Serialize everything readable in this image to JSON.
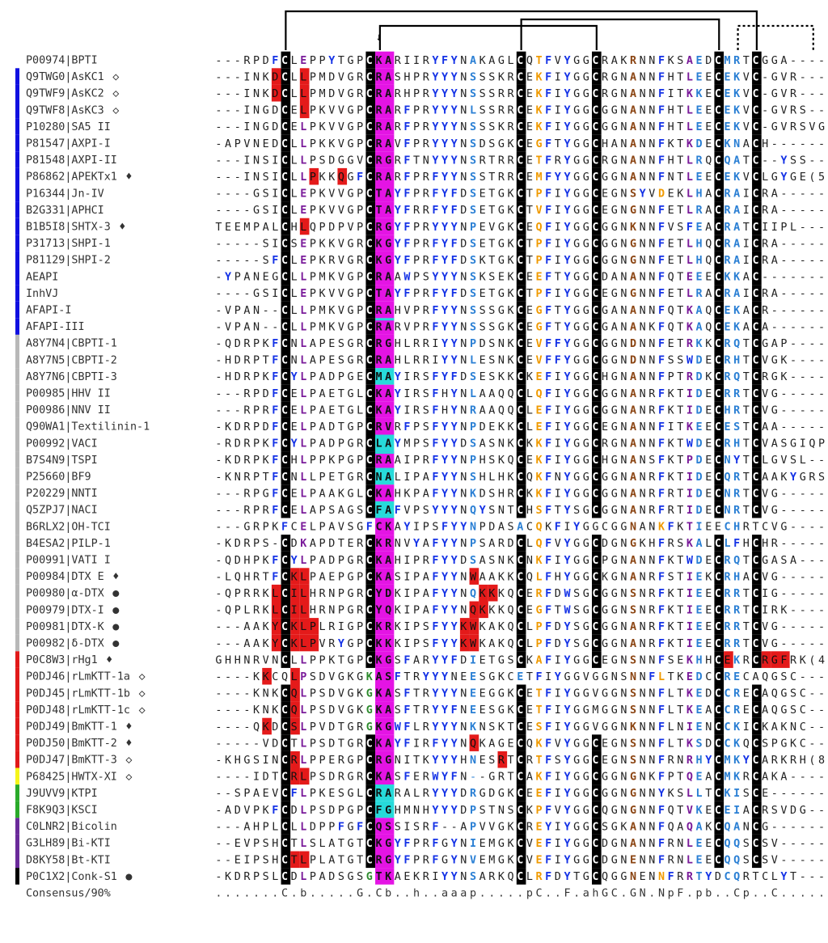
{
  "alignment": {
    "rows": [
      {
        "id": "P00974|BPTI",
        "seq": "---RPDFCLEPPYTGPCKARIIRYFYNAKAGLCQTFVYGGCRAKRNNFKSAEDCMRTCGGA-----",
        "group": "none",
        "marker": ""
      },
      {
        "id": "Q9TWG0|AsKC1",
        "seq": "---INKDCLLPMDVGRCRASHPRYYYNSSSKRCEKFIYGGCRGNANNFHTLEECEKVC-GVR----",
        "group": "blue",
        "marker": "◇"
      },
      {
        "id": "Q9TWF9|AsKC2",
        "seq": "---INKDCLLPMDVGRCRARHPRYYYNSSSRRCEKFIYGGCRGNANNFITKKECEKVC-GVR----",
        "group": "blue",
        "marker": "◇"
      },
      {
        "id": "Q9TWF8|AsKC3",
        "seq": "---INGDCELPKVVGPCRARFPRYYYNLSSRRCEKFIYGGCGGNANNFHTLEECEKVC-GVRS---",
        "group": "blue",
        "marker": "◇"
      },
      {
        "id": "P10280|SA5 II",
        "seq": "---INGDCELPKVVGPCRARFPRYYYNSSSKRCEKFIYGGCGGNANNFHTLEECEKVC-GVRSVGR",
        "group": "blue",
        "marker": ""
      },
      {
        "id": "P81547|AXPI-I",
        "seq": "-APVNEDCLLPKKVGPCRAVFPRYYYNSDSGKCEGFTYGGCHANANNFKTKDECKNACH-------",
        "group": "blue",
        "marker": ""
      },
      {
        "id": "P81548|AXPI-II",
        "seq": "---INSICLLPSDGGVCRGRFTNYYYNSRTRRCETFRYGGCRGNANNFHTLRQCQATC--YSS---",
        "group": "blue",
        "marker": ""
      },
      {
        "id": "P86862|APEKTx1",
        "seq": "---INSICLLPKKQGFCRARFPRFYYNSSTRRCEMFYYGGCGGNANNFNTLEECEKVCLGYGE(5)",
        "group": "blue",
        "marker": "♦"
      },
      {
        "id": "P16344|Jn-IV",
        "seq": "----GSICLEPKVVGPCTAYFPRFYFDSETGKCTPFIYGGCEGNSYVDEKLHACRAICRA------",
        "group": "blue",
        "marker": ""
      },
      {
        "id": "B2G331|APHCI",
        "seq": "----GSICLEPKVVGPCTAYFRRFYFDSETGKCTVFIYGGCEGNGNNFETLRACRAICRA------",
        "group": "blue",
        "marker": ""
      },
      {
        "id": "B1B5I8|SHTX-3",
        "seq": "TEEMPALCHLQPDPVPCRGYFPRYYYNPEVGKCEQFIYGGCGGNKNNFVSFEACRATCIIPL----",
        "group": "blue",
        "marker": "♦"
      },
      {
        "id": "P31713|SHPI-1",
        "seq": "-----SICSEPKKVGRCKGYFPRFYFDSETGKCTPFIYGGCGGNGNNFETLHQCRAICRA------",
        "group": "blue",
        "marker": ""
      },
      {
        "id": "P81129|SHPI-2",
        "seq": "-----SFCLEPKRVGRCKGYFPRFYFDSKTGKCTPFIYGGCGGNGNNFETLHQCRAICRA------",
        "group": "blue",
        "marker": ""
      },
      {
        "id": "AEAPI",
        "seq": "-YPANEGCLLPMKVGPCRAAWPSYYYNSKSEKCEEFTYGGCDANANNFQTEEECKKAC--------",
        "group": "blue",
        "marker": ""
      },
      {
        "id": "InhVJ",
        "seq": "----GSICLEPKVVGPCTAYFPRFYFDSETGKCTPFIYGGCEGNGNNFETLRACRAICRA------",
        "group": "blue",
        "marker": ""
      },
      {
        "id": "AFAPI-I",
        "seq": "-VPAN--CLLPMKVGPCRAHVPRFYYNSSSGKCEGFTYGGCGANANNFQTKAQCEKACR-------",
        "group": "blue",
        "marker": ""
      },
      {
        "id": "AFAPI-III",
        "seq": "-VPAN--CLLPMKVGPCRARVPRFYYNSSSGKCEGFTYGGCGANANKFQTKAQCEKACA-------",
        "group": "blue",
        "marker": ""
      },
      {
        "id": "A8Y7N4|CBPTI-1",
        "seq": "-QDRPKFCNLAPESGRCRGHLRRIYYNPDSNKCEVFFYGGCGGNDNNFETRKKCRQTCGAP-----",
        "group": "gray",
        "marker": ""
      },
      {
        "id": "A8Y7N5|CBPTI-2",
        "seq": "-HDRPTFCNLAPESGRCRAHLRRIYYNLESNKCEVFFYGGCGGNDNNFSSWDECRHTCVGK-----",
        "group": "gray",
        "marker": ""
      },
      {
        "id": "A8Y7N6|CBPTI-3",
        "seq": "-HDRPKFCYLPADPGECMAYIRSFYFDSESKKCKEFIYGGCHGNANNFPTRDKCRQTCRGK-----",
        "group": "gray",
        "marker": ""
      },
      {
        "id": "P00985|HHV II",
        "seq": "---RPDFCELPAETGLCKAYIRSFHYNLAAQQCLQFIYGGCGGNANRFKTIDECRRTCVG------",
        "group": "gray",
        "marker": ""
      },
      {
        "id": "P00986|NNV II",
        "seq": "---RPRFCELPAETGLCKAYIRSFHYNRAAQQCLEFIYGGCGGNANRFKTIDECHRTCVG------",
        "group": "gray",
        "marker": ""
      },
      {
        "id": "Q90WA1|Textilinin-1",
        "seq": "-KDRPDFCELPADTGPCRVRFPSFYYNPDEKKCLEFIYGGCEGNANNFITKEECESTCAA------",
        "group": "gray",
        "marker": ""
      },
      {
        "id": "P00992|VACI",
        "seq": "-RDRPKFCYLPADPGRCLAYMPSFYYDSASNKCKKFIYGGCRGNANNFKTWDECRHTCVASGIQPR",
        "group": "gray",
        "marker": ""
      },
      {
        "id": "B7S4N9|TSPI",
        "seq": "-KDRPKFCHLPPKPGPCRAAIPRFYYNPHSKQCEKFIYGGCHGNANSFKTPDECNYTCLGVSL---",
        "group": "gray",
        "marker": ""
      },
      {
        "id": "P25660|BF9",
        "seq": "-KNRPTFCNLLPETGRCNALIPAFYYNSHLHKCQKFNYGGCGGNANRFKTIDECQRTCAAKYGRSS",
        "group": "gray",
        "marker": ""
      },
      {
        "id": "P20229|NNTI",
        "seq": "---RPGFCELPAAKGLCKAHKPAFYYNKDSHRCKKFIYGGCGGNANRFRTIDECNRTCVG------",
        "group": "gray",
        "marker": ""
      },
      {
        "id": "Q5ZPJ7|NACI",
        "seq": "---RPRFCELAPSAGSCFAFVPSYYYNQYSNTCHSFTYSGCGGNANRFRTIDECNRTCVG------",
        "group": "gray",
        "marker": ""
      },
      {
        "id": "B6RLX2|OH-TCI",
        "seq": "---GRPKFCELPAVSGFCKAYIPSFYYNPDASACQKFIYGGCGGNANKFKTIEECHRTCVG------",
        "group": "gray",
        "marker": ""
      },
      {
        "id": "B4ESA2|PILP-1",
        "seq": "-KDRPS-CDKAPDTERCKRNVYAFYYNPSARDCLQFVYGGCDGNGKHFRSKALCLFHCHR------",
        "group": "gray",
        "marker": ""
      },
      {
        "id": "P00991|VATI I",
        "seq": "-QDHPKFCYLPADPGRCKAHIPRFYYDSASNKCNKFIYGGCPGNANNFKTWDECRQTCGASA----",
        "group": "gray",
        "marker": ""
      },
      {
        "id": "P00984|DTX E",
        "seq": "-LQHRTFCKLPAEPGPCKASIPAFYYNWAAKKCQLFHYGGCKGNANRFSTIEKCRHACVG------",
        "group": "gray",
        "marker": "♦"
      },
      {
        "id": "P00980|α-DTX",
        "seq": "-QPRRKLCILHRNPGRCYDKIPAFYYNQKKKQCERFDWSGCGGNSNRFKTIEECRRTCIG------",
        "group": "gray",
        "marker": "●"
      },
      {
        "id": "P00979|DTX-I",
        "seq": "-QPLRKLCILHRNPGRCYQKIPAFYYNQKKKQCEGFTWSGCGGNSNRFKTIEECRRTCIRK-----",
        "group": "gray",
        "marker": "●"
      },
      {
        "id": "P00981|DTX-K",
        "seq": "---AAKYCKLPLRIGPCKRKIPSFYYKWKAKQCLPFDYSGCGGNANRFKTIEECRRTCVG------",
        "group": "gray",
        "marker": "●"
      },
      {
        "id": "P00982|δ-DTX",
        "seq": "---AAKYCKLPVRYGPCKKKIPSFYYKWKAKQCLPFDYSGCGGNANRFKTIEECRRTCVG------",
        "group": "gray",
        "marker": "●"
      },
      {
        "id": "P0C8W3|rHg1",
        "seq": "GHHNRVNCLLPPKTGPCKGSFARYYFDIETGSCKAFIYGGCEGNSNNFSEKHHCEKRCRGFRK(4)",
        "group": "red",
        "marker": "♦"
      },
      {
        "id": "P0DJ46|rLmKTT-1a",
        "seq": "----KKCQLPSDVGKGKASFTRYYYNEESGKCETFIYGGVGGNSNNFLTKEDCCRECAQGSC---",
        "group": "red",
        "marker": "◇"
      },
      {
        "id": "P0DJ45|rLmKTT-1b",
        "seq": "----KNKCQLPSDVGKGKASFTRYYYNEEGGKCETFIYGGVGGNSNNFLTKEDCCRECAQGSC---",
        "group": "red",
        "marker": "◇"
      },
      {
        "id": "P0DJ48|rLmKTT-1c",
        "seq": "----KNKCQLPSDVGKGKASFTRYYFNEESGKCETFIYGGMGGNSNNFLTKEACCRECAQGSC---",
        "group": "red",
        "marker": "◇"
      },
      {
        "id": "P0DJ49|BmKTT-1",
        "seq": "----QKDCSLPVDTGRGKGWFLRYYYNKNSKTCESFIYGGVGGNKNNFLNIENCCKICKAKNC---",
        "group": "red",
        "marker": "♦"
      },
      {
        "id": "P0DJ50|BmKTT-2",
        "seq": "-----VDCTLPSDTGRCKAYFIRFYYNQKAGECQKFVYGGCEGNSNNFLTKSDCCKQCSPGKC---",
        "group": "red",
        "marker": "♦"
      },
      {
        "id": "P0DJ47|BmKTT-3",
        "seq": "-KHGSINCRLPPERGPCRGNITKYYYHNESRTCRTFSYGGCEGNSNNFRNRHYCMKYCARKRH(8)",
        "group": "red",
        "marker": "◇"
      },
      {
        "id": "P68425|HWTX-XI",
        "seq": "----IDTCRLPSDRGRCKASFERWYFN--GRTCAKFIYGGCGGNGNKFPTQEACMKRCAKA-----",
        "group": "yellow",
        "marker": "◇"
      },
      {
        "id": "J9UVV9|KTPI",
        "seq": "--SPAEVCFLPKESGLCRARALRYYYDRGDGKCEEFIYGGCGGNGNNYKSLLTCKISCE-------",
        "group": "green",
        "marker": ""
      },
      {
        "id": "F8K9Q3|KSCI",
        "seq": "-ADVPKFCDLPSDPGPCFGHMNHYYYDPSTNSCKPFVYGGCQGNGNNFQTVKECEIACRSVDG---",
        "group": "green",
        "marker": ""
      },
      {
        "id": "C0LNR2|Bicolin",
        "seq": "---AHPLCLLDPPFGFCQSSISRF--APVVGKCREYIYGGCSGKANNFQAQAKCQANCG-------",
        "group": "purple",
        "marker": ""
      },
      {
        "id": "G3LH89|Bi-KTI",
        "seq": "--EVPSHCTLSLATGTCKGYFPRFGYNIEMGKCVEFIYGGCDGNANNFRNLEECQQSCSV------",
        "group": "purple",
        "marker": ""
      },
      {
        "id": "D8KY58|Bt-KTI",
        "seq": "--EIPSHCTLPLATGTCRGYFPRFGYNVEMGKCVEFIYGGCDGNENNFRNLEECQQSCSV------",
        "group": "purple",
        "marker": ""
      },
      {
        "id": "P0C1X2|Conk-S1",
        "seq": "-KDRPSLCDLPADSGSGTKAEKRIYYNSARKQCLRFDYTGCQGGNENNFRRTYDCQRTCLYT-----",
        "group": "black",
        "marker": "●"
      }
    ],
    "consensus": {
      "label": "Consensus/90%",
      "seq": ".......C.b.....G.Cb..h..aaap.....pC..F.ahGC.GN.NpF.pb..Cp..C......."
    },
    "arrow_glyph": "↓",
    "colors": {
      "cys_bg": "#000000",
      "cys_fg": "#ffffff",
      "magenta": "#e414e4",
      "cyan": "#27dada",
      "red_hl": "#e41a1a",
      "aromatic_blue": "#1432e6",
      "orange": "#f09a00",
      "purple": "#7a1b9a",
      "green": "#2e8b2e",
      "brown": "#8b4513",
      "ltblue": "#2a7fd4",
      "bar_blue": "#1010e0",
      "bar_gray": "#b8b8b8",
      "bar_red": "#e11a1a",
      "bar_yellow": "#f5f51a",
      "bar_green": "#2aaa2a",
      "bar_purple": "#6a2a9a",
      "bar_black": "#000000"
    },
    "col_colors": {
      "9": "purple",
      "16": "green",
      "27": "ltblue",
      "32": "ltblue",
      "34": "orange",
      "44": "brown",
      "47": "orange",
      "50": "purple",
      "51": "ltblue",
      "54": "ltblue",
      "55": "ltblue"
    },
    "aa_colors": {
      "Y": "aromatic_blue",
      "F": "aromatic_blue",
      "W": "aromatic_blue"
    },
    "red_cells": [
      [
        1,
        6
      ],
      [
        1,
        9
      ],
      [
        2,
        6
      ],
      [
        2,
        9
      ],
      [
        3,
        9
      ],
      [
        7,
        10
      ],
      [
        7,
        13
      ],
      [
        10,
        9
      ],
      [
        31,
        8
      ],
      [
        31,
        9
      ],
      [
        31,
        27
      ],
      [
        32,
        6
      ],
      [
        32,
        8
      ],
      [
        32,
        9
      ],
      [
        32,
        28
      ],
      [
        32,
        29
      ],
      [
        33,
        6
      ],
      [
        33,
        8
      ],
      [
        33,
        9
      ],
      [
        33,
        27
      ],
      [
        33,
        28
      ],
      [
        34,
        6
      ],
      [
        34,
        8
      ],
      [
        34,
        9
      ],
      [
        34,
        10
      ],
      [
        34,
        26
      ],
      [
        34,
        27
      ],
      [
        35,
        6
      ],
      [
        35,
        8
      ],
      [
        35,
        9
      ],
      [
        35,
        10
      ],
      [
        35,
        26
      ],
      [
        35,
        27
      ],
      [
        36,
        53
      ],
      [
        36,
        54
      ],
      [
        36,
        58
      ],
      [
        36,
        59
      ],
      [
        36,
        60
      ],
      [
        37,
        5
      ],
      [
        37,
        8
      ],
      [
        38,
        8
      ],
      [
        39,
        8
      ],
      [
        40,
        5
      ],
      [
        40,
        8
      ],
      [
        41,
        27
      ],
      [
        42,
        8
      ],
      [
        42,
        30
      ],
      [
        43,
        8
      ],
      [
        43,
        9
      ],
      [
        48,
        8
      ],
      [
        48,
        9
      ]
    ],
    "cyan_rows": [
      19,
      23,
      25,
      27,
      44,
      45
    ],
    "cyan_before_rows": [
      16,
      24,
      25,
      44
    ],
    "connectors": [
      {
        "from": 7,
        "to": 57,
        "level": 0,
        "dotted": false
      },
      {
        "from": 17,
        "to": 40,
        "level": 2,
        "dotted": false
      },
      {
        "from": 32,
        "to": 53,
        "level": 1,
        "dotted": false
      },
      {
        "from": 55,
        "to": 63,
        "level": 2,
        "dotted": true
      }
    ]
  }
}
